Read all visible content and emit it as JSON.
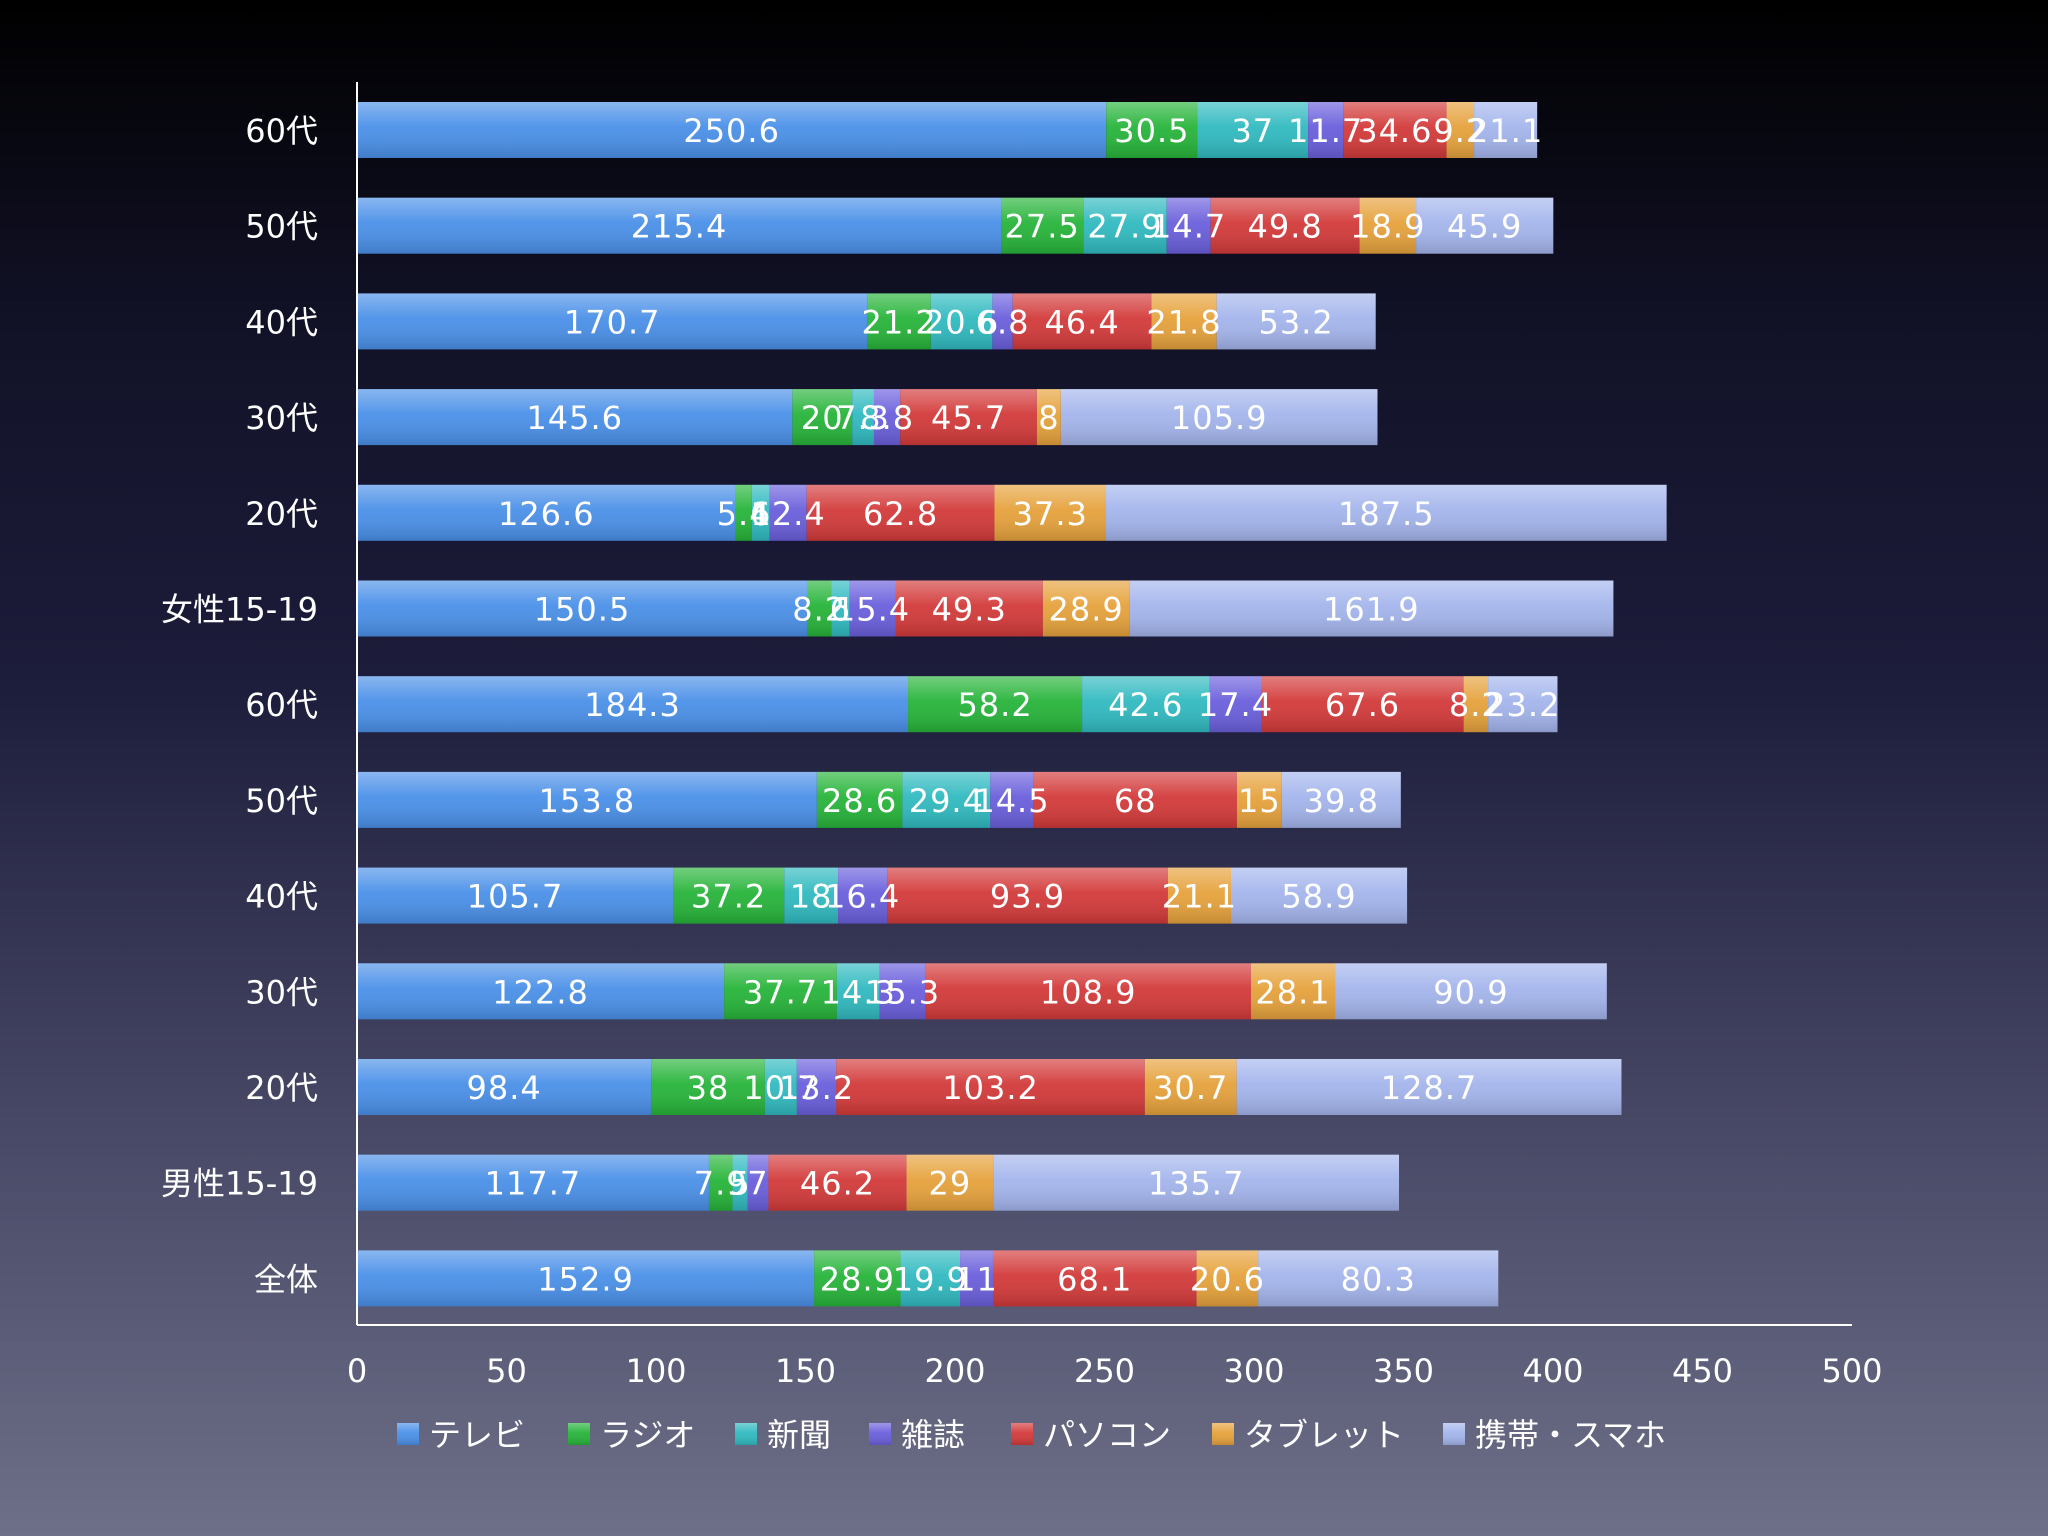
{
  "chart_data": {
    "type": "stacked-bar-horizontal",
    "title": "",
    "xlabel": "",
    "ylabel": "",
    "xlim": [
      0,
      500
    ],
    "xticks": [
      "0",
      "50",
      "100",
      "150",
      "200",
      "250",
      "300",
      "350",
      "400",
      "450",
      "500"
    ],
    "categories": [
      "60代",
      "50代",
      "40代",
      "30代",
      "20代",
      "女性15-19",
      "60代",
      "50代",
      "40代",
      "30代",
      "20代",
      "男性15-19",
      "全体"
    ],
    "series": [
      {
        "name": "テレビ",
        "color": "#4a90e8",
        "values": [
          250.6,
          215.4,
          170.7,
          145.6,
          126.6,
          150.5,
          184.3,
          153.8,
          105.7,
          122.8,
          98.4,
          117.7,
          152.9
        ]
      },
      {
        "name": "ラジオ",
        "color": "#27b43a",
        "values": [
          30.5,
          27.5,
          21.2,
          20,
          5.4,
          8.2,
          58.2,
          28.6,
          37.2,
          37.7,
          38,
          7.9,
          28.9
        ]
      },
      {
        "name": "新聞",
        "color": "#30bac0",
        "values": [
          37,
          27.9,
          20.6,
          7.3,
          6,
          6,
          42.6,
          29.4,
          18,
          14.3,
          10.7,
          5,
          19.9
        ]
      },
      {
        "name": "雑誌",
        "color": "#6a5fdc",
        "values": [
          11.7,
          14.7,
          6.8,
          8.8,
          12.4,
          15.4,
          17.4,
          14.5,
          16.4,
          15.3,
          13.2,
          7,
          11
        ]
      },
      {
        "name": "パソコン",
        "color": "#d33a3a",
        "values": [
          34.6,
          49.8,
          46.4,
          45.7,
          62.8,
          49.3,
          67.6,
          68,
          93.9,
          108.9,
          103.2,
          46.2,
          68.1
        ]
      },
      {
        "name": "タブレット",
        "color": "#e6a23c",
        "values": [
          9.2,
          18.9,
          21.8,
          8,
          37.3,
          28.9,
          8.2,
          15,
          21.1,
          28.1,
          30.7,
          29,
          20.6
        ]
      },
      {
        "name": "携帯・スマホ",
        "color": "#a4b5ec",
        "values": [
          21.1,
          45.9,
          53.2,
          105.9,
          187.5,
          161.9,
          23.2,
          39.8,
          58.9,
          90.9,
          128.7,
          135.7,
          80.3
        ]
      }
    ],
    "data_labels": [
      [
        "250.6",
        "30.5",
        "37",
        "11.7",
        "34.6",
        "9.2",
        "21.1"
      ],
      [
        "215.4",
        "27.5",
        "27.9",
        "14.7",
        "49.8",
        "18.9",
        "45.9"
      ],
      [
        "170.7",
        "21.2",
        "20.6",
        "6.8",
        "46.4",
        "21.8",
        "53.2"
      ],
      [
        "145.6",
        "20",
        "7.3",
        "8.8",
        "45.7",
        "8",
        "105.9"
      ],
      [
        "126.6",
        "5.4",
        "6",
        "12.4",
        "62.8",
        "37.3",
        "187.5"
      ],
      [
        "150.5",
        "8.2",
        "6",
        "15.4",
        "49.3",
        "28.9",
        "161.9"
      ],
      [
        "184.3",
        "58.2",
        "42.6",
        "17.4",
        "67.6",
        "8.2",
        "23.2"
      ],
      [
        "153.8",
        "28.6",
        "29.4",
        "14.5",
        "68",
        "15",
        "39.8"
      ],
      [
        "105.7",
        "37.2",
        "18",
        "16.4",
        "93.9",
        "21.1",
        "58.9"
      ],
      [
        "122.8",
        "37.7",
        "14.3",
        "15.3",
        "108.9",
        "28.1",
        "90.9"
      ],
      [
        "98.4",
        "38",
        "10.7",
        "13.2",
        "103.2",
        "30.7",
        "128.7"
      ],
      [
        "117.7",
        "7.9",
        "5",
        "7",
        "46.2",
        "29",
        "135.7"
      ],
      [
        "152.9",
        "28.9",
        "19.9",
        "11",
        "68.1",
        "20.6",
        "80.3"
      ]
    ],
    "legend_position": "bottom"
  }
}
